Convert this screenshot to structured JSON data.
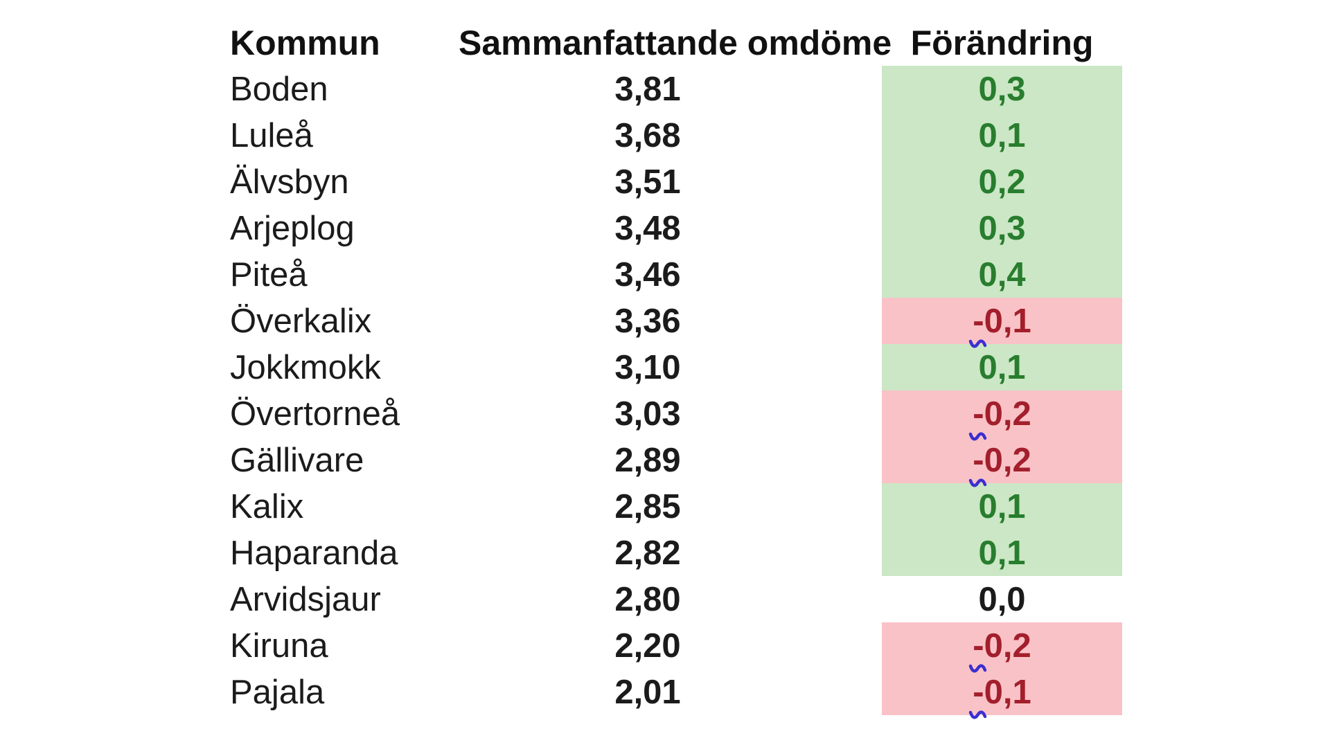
{
  "chart_data": {
    "type": "table",
    "columns": [
      "Kommun",
      "Sammanfattande omdöme",
      "Förändring"
    ],
    "rows": [
      {
        "kommun": "Boden",
        "omdome": "3,81",
        "forandring": "0,3",
        "forandring_value": 0.3,
        "trend": "positive"
      },
      {
        "kommun": "Luleå",
        "omdome": "3,68",
        "forandring": "0,1",
        "forandring_value": 0.1,
        "trend": "positive"
      },
      {
        "kommun": "Älvsbyn",
        "omdome": "3,51",
        "forandring": "0,2",
        "forandring_value": 0.2,
        "trend": "positive"
      },
      {
        "kommun": "Arjeplog",
        "omdome": "3,48",
        "forandring": "0,3",
        "forandring_value": 0.3,
        "trend": "positive"
      },
      {
        "kommun": "Piteå",
        "omdome": "3,46",
        "forandring": "0,4",
        "forandring_value": 0.4,
        "trend": "positive"
      },
      {
        "kommun": "Överkalix",
        "omdome": "3,36",
        "forandring": "-0,1",
        "forandring_value": -0.1,
        "trend": "negative"
      },
      {
        "kommun": "Jokkmokk",
        "omdome": "3,10",
        "forandring": "0,1",
        "forandring_value": 0.1,
        "trend": "positive"
      },
      {
        "kommun": "Övertorneå",
        "omdome": "3,03",
        "forandring": "-0,2",
        "forandring_value": -0.2,
        "trend": "negative"
      },
      {
        "kommun": "Gällivare",
        "omdome": "2,89",
        "forandring": "-0,2",
        "forandring_value": -0.2,
        "trend": "negative"
      },
      {
        "kommun": "Kalix",
        "omdome": "2,85",
        "forandring": "0,1",
        "forandring_value": 0.1,
        "trend": "positive"
      },
      {
        "kommun": "Haparanda",
        "omdome": "2,82",
        "forandring": "0,1",
        "forandring_value": 0.1,
        "trend": "positive"
      },
      {
        "kommun": "Arvidsjaur",
        "omdome": "2,80",
        "forandring": "0,0",
        "forandring_value": 0.0,
        "trend": "neutral"
      },
      {
        "kommun": "Kiruna",
        "omdome": "2,20",
        "forandring": "-0,2",
        "forandring_value": -0.2,
        "trend": "negative"
      },
      {
        "kommun": "Pajala",
        "omdome": "2,01",
        "forandring": "-0,1",
        "forandring_value": -0.1,
        "trend": "negative"
      }
    ],
    "legend_position": "none",
    "grid": false
  },
  "colors": {
    "positive_bg": "#cbe7c5",
    "negative_bg": "#f9c2c7",
    "positive_text": "#287d2e",
    "negative_text": "#a21f2b",
    "neutral_text": "#1b1b1b",
    "header_text": "#111111",
    "squiggle": "#3b2fd0"
  },
  "icons": {
    "squiggle": "spellcheck-squiggle-icon"
  }
}
